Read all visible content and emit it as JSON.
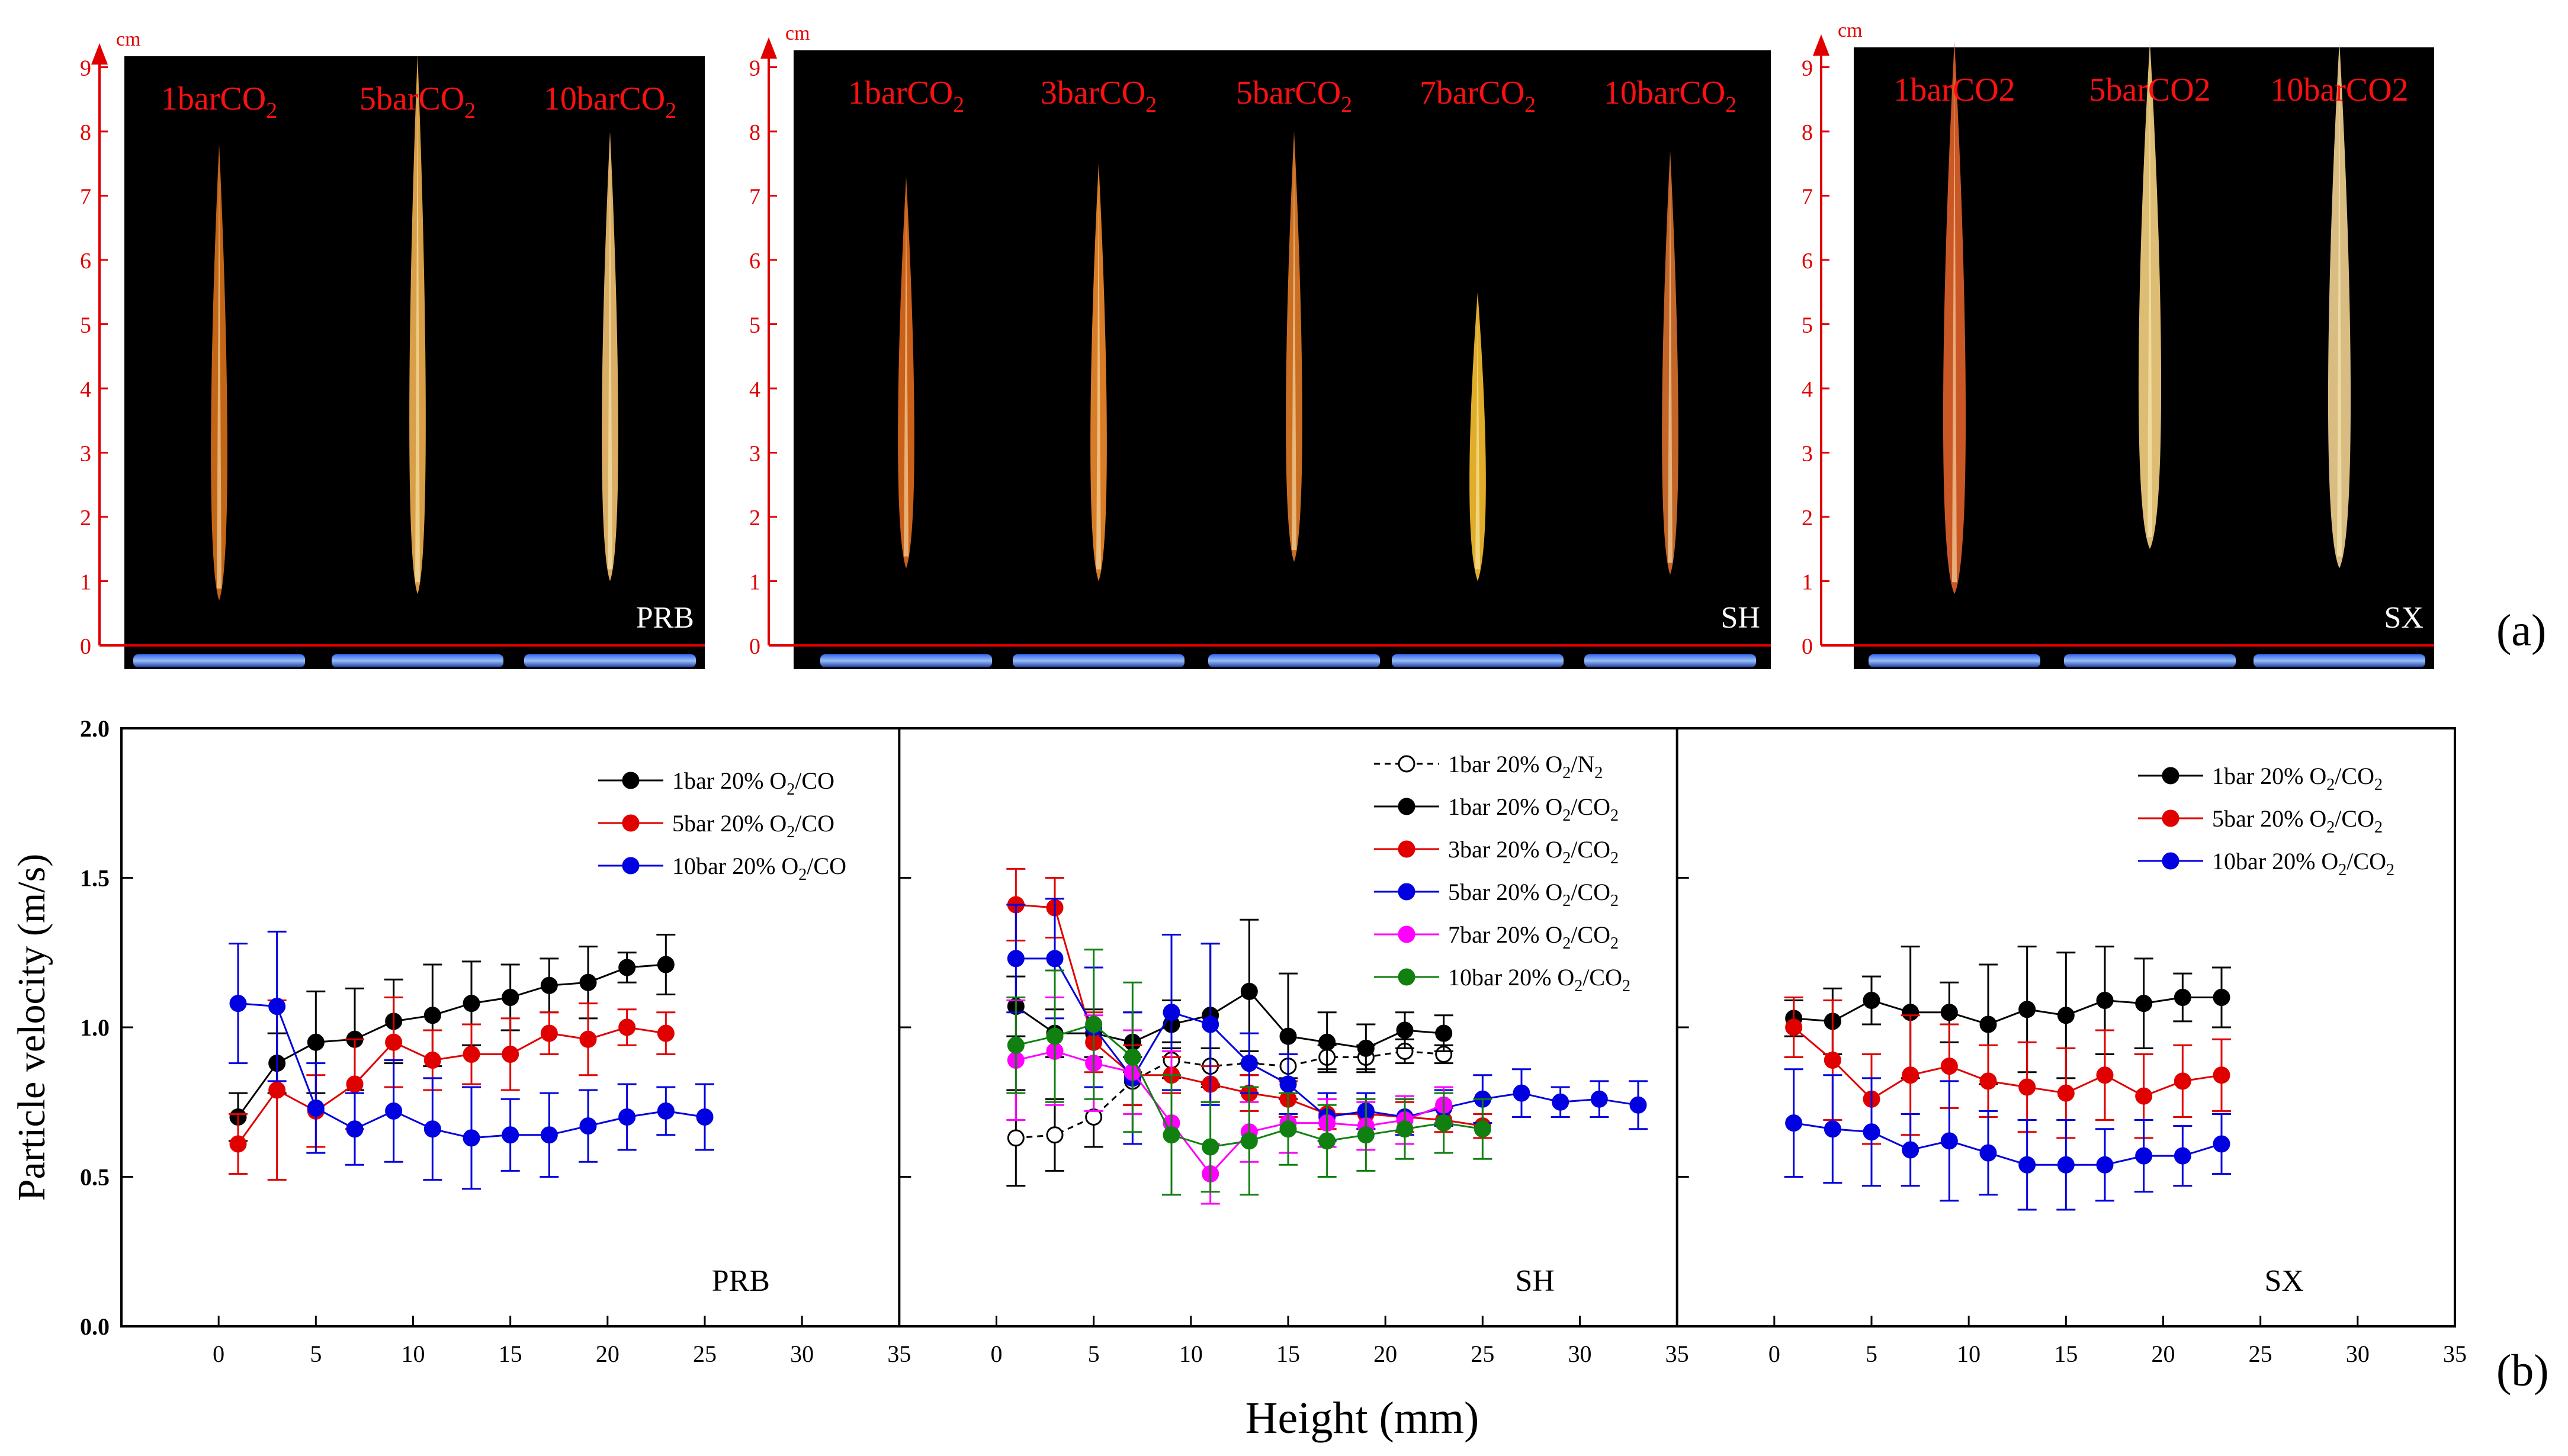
{
  "photos": {
    "panel_label": "(a)",
    "unit": "cm",
    "scale_ticks": [
      "0",
      "1",
      "2",
      "3",
      "4",
      "5",
      "6",
      "7",
      "8",
      "9"
    ],
    "groups": [
      {
        "name": "PRB",
        "labels": [
          {
            "main": "1barCO",
            "sub": "2"
          },
          {
            "main": "5barCO",
            "sub": "2"
          },
          {
            "main": "10barCO",
            "sub": "2"
          }
        ],
        "flame_heights_cm": [
          7.8,
          9.2,
          8.0
        ],
        "flame_bases_cm": [
          0.7,
          0.8,
          1.0
        ],
        "flame_colors": [
          "#d8701a",
          "#f0b050",
          "#f2c070"
        ]
      },
      {
        "name": "SH",
        "labels": [
          {
            "main": "1barCO",
            "sub": "2"
          },
          {
            "main": "3barCO",
            "sub": "2"
          },
          {
            "main": "5barCO",
            "sub": "2"
          },
          {
            "main": "7barCO",
            "sub": "2"
          },
          {
            "main": "10barCO",
            "sub": "2"
          }
        ],
        "flame_heights_cm": [
          7.3,
          7.5,
          8.0,
          5.5,
          7.7
        ],
        "flame_bases_cm": [
          1.2,
          1.0,
          1.3,
          1.0,
          1.1
        ],
        "flame_colors": [
          "#e06a1c",
          "#f08a2c",
          "#e07a28",
          "#f8c030",
          "#d8702c"
        ]
      },
      {
        "name": "SX",
        "labels": [
          {
            "main": "1barCO2",
            "sub": ""
          },
          {
            "main": "5barCO2",
            "sub": ""
          },
          {
            "main": "10barCO2",
            "sub": ""
          }
        ],
        "flame_heights_cm": [
          9.4,
          9.4,
          9.4
        ],
        "flame_bases_cm": [
          0.8,
          1.5,
          1.2
        ],
        "flame_colors": [
          "#e0602a",
          "#f5d080",
          "#f0d090"
        ]
      }
    ]
  },
  "chart": {
    "panel_label": "(b)",
    "ylabel": "Particle velocity (m/s)",
    "xlabel": "Height (mm)",
    "ytick_labels": [
      "0.0",
      "0.5",
      "1.0",
      "1.5",
      "2.0"
    ],
    "xtick_labels": [
      "0",
      "5",
      "10",
      "15",
      "20",
      "25",
      "30",
      "35"
    ]
  },
  "chart_data": [
    {
      "type": "scatter",
      "title": "PRB",
      "xlim": [
        -5,
        35
      ],
      "ylim": [
        0,
        2
      ],
      "series": [
        {
          "name": "1bar 20% O2/CO",
          "color": "#000000",
          "open": false,
          "x": [
            1,
            3,
            5,
            7,
            9,
            11,
            13,
            15,
            17,
            19,
            21,
            23
          ],
          "y": [
            0.7,
            0.88,
            0.95,
            0.96,
            1.02,
            1.04,
            1.08,
            1.1,
            1.14,
            1.15,
            1.2,
            1.21
          ],
          "err": [
            0.08,
            0.1,
            0.17,
            0.17,
            0.14,
            0.17,
            0.14,
            0.11,
            0.09,
            0.12,
            0.05,
            0.1
          ]
        },
        {
          "name": "5bar 20% O2/CO",
          "color": "#e00000",
          "open": false,
          "x": [
            1,
            3,
            5,
            7,
            9,
            11,
            13,
            15,
            17,
            19,
            21,
            23
          ],
          "y": [
            0.61,
            0.79,
            0.72,
            0.81,
            0.95,
            0.89,
            0.91,
            0.91,
            0.98,
            0.96,
            1.0,
            0.98
          ],
          "err": [
            0.1,
            0.3,
            0.12,
            0.15,
            0.15,
            0.1,
            0.1,
            0.12,
            0.07,
            0.12,
            0.06,
            0.07
          ]
        },
        {
          "name": "10bar 20% O2/CO",
          "color": "#0000e0",
          "open": false,
          "x": [
            1,
            3,
            5,
            7,
            9,
            11,
            13,
            15,
            17,
            19,
            21,
            23,
            25
          ],
          "y": [
            1.08,
            1.07,
            0.73,
            0.66,
            0.72,
            0.66,
            0.63,
            0.64,
            0.64,
            0.67,
            0.7,
            0.72,
            0.7
          ],
          "err": [
            0.2,
            0.25,
            0.15,
            0.12,
            0.17,
            0.17,
            0.17,
            0.12,
            0.14,
            0.12,
            0.11,
            0.08,
            0.11
          ]
        }
      ]
    },
    {
      "type": "scatter",
      "title": "SH",
      "xlim": [
        -5,
        35
      ],
      "ylim": [
        0,
        2
      ],
      "series": [
        {
          "name": "1bar 20% O2/N2",
          "color": "#000000",
          "open": true,
          "dashed": true,
          "x": [
            1,
            3,
            5,
            7,
            9,
            11,
            13,
            15,
            17,
            19,
            21,
            23
          ],
          "y": [
            0.63,
            0.64,
            0.7,
            0.82,
            0.89,
            0.87,
            0.88,
            0.87,
            0.9,
            0.9,
            0.92,
            0.91
          ],
          "err": [
            0.16,
            0.12,
            0.1,
            0.08,
            0.06,
            0.06,
            0.04,
            0.04,
            0.04,
            0.04,
            0.04,
            0.03
          ]
        },
        {
          "name": "1bar 20% O2/CO2",
          "color": "#000000",
          "open": false,
          "x": [
            1,
            3,
            5,
            7,
            9,
            11,
            13,
            15,
            17,
            19,
            21,
            23
          ],
          "y": [
            1.07,
            0.98,
            0.98,
            0.95,
            1.01,
            1.04,
            1.12,
            0.97,
            0.95,
            0.93,
            0.99,
            0.98
          ],
          "err": [
            0.1,
            0.08,
            0.08,
            0.1,
            0.08,
            0.24,
            0.24,
            0.21,
            0.1,
            0.08,
            0.06,
            0.06
          ]
        },
        {
          "name": "3bar 20% O2/CO2",
          "color": "#e00000",
          "open": false,
          "x": [
            1,
            3,
            5,
            7,
            9,
            11,
            13,
            15,
            17,
            19,
            21,
            23,
            25
          ],
          "y": [
            1.41,
            1.4,
            0.95,
            0.84,
            0.84,
            0.81,
            0.78,
            0.76,
            0.71,
            0.71,
            0.7,
            0.69,
            0.67
          ],
          "err": [
            0.12,
            0.1,
            0.1,
            0.1,
            0.06,
            0.06,
            0.06,
            0.06,
            0.05,
            0.05,
            0.05,
            0.04,
            0.04
          ]
        },
        {
          "name": "5bar 20% O2/CO2",
          "color": "#0000e0",
          "open": false,
          "x": [
            1,
            3,
            5,
            7,
            9,
            11,
            13,
            15,
            17,
            19,
            21,
            23,
            25,
            27,
            29,
            31,
            33
          ],
          "y": [
            1.23,
            1.23,
            1.0,
            0.83,
            1.05,
            1.01,
            0.88,
            0.81,
            0.7,
            0.72,
            0.7,
            0.73,
            0.76,
            0.78,
            0.75,
            0.76,
            0.74
          ],
          "err": [
            0.18,
            0.2,
            0.2,
            0.22,
            0.26,
            0.27,
            0.1,
            0.1,
            0.08,
            0.06,
            0.06,
            0.06,
            0.08,
            0.08,
            0.05,
            0.06,
            0.08
          ]
        },
        {
          "name": "7bar 20% O2/CO2",
          "color": "#ff00ff",
          "open": false,
          "x": [
            1,
            3,
            5,
            7,
            9,
            11,
            13,
            15,
            17,
            19,
            21,
            23
          ],
          "y": [
            0.89,
            0.92,
            0.88,
            0.85,
            0.68,
            0.51,
            0.65,
            0.68,
            0.68,
            0.67,
            0.69,
            0.74
          ],
          "err": [
            0.2,
            0.18,
            0.16,
            0.14,
            0.24,
            0.1,
            0.1,
            0.1,
            0.08,
            0.08,
            0.08,
            0.06
          ]
        },
        {
          "name": "10bar 20% O2/CO2",
          "color": "#108010",
          "open": false,
          "x": [
            1,
            3,
            5,
            7,
            9,
            11,
            13,
            15,
            17,
            19,
            21,
            23,
            25
          ],
          "y": [
            0.94,
            0.97,
            1.01,
            0.9,
            0.64,
            0.6,
            0.62,
            0.66,
            0.62,
            0.64,
            0.66,
            0.68,
            0.66
          ],
          "err": [
            0.16,
            0.22,
            0.25,
            0.25,
            0.2,
            0.15,
            0.18,
            0.12,
            0.12,
            0.12,
            0.1,
            0.1,
            0.1
          ]
        }
      ]
    },
    {
      "type": "scatter",
      "title": "SX",
      "xlim": [
        -5,
        35
      ],
      "ylim": [
        0,
        2
      ],
      "series": [
        {
          "name": "1bar 20% O2/CO2",
          "color": "#000000",
          "open": false,
          "x": [
            1,
            3,
            5,
            7,
            9,
            11,
            13,
            15,
            17,
            19,
            21,
            23
          ],
          "y": [
            1.03,
            1.02,
            1.09,
            1.05,
            1.05,
            1.01,
            1.06,
            1.04,
            1.09,
            1.08,
            1.1,
            1.1
          ],
          "err": [
            0.06,
            0.11,
            0.08,
            0.22,
            0.1,
            0.2,
            0.21,
            0.21,
            0.18,
            0.15,
            0.08,
            0.1
          ]
        },
        {
          "name": "5bar 20% O2/CO2",
          "color": "#e00000",
          "open": false,
          "x": [
            1,
            3,
            5,
            7,
            9,
            11,
            13,
            15,
            17,
            19,
            21,
            23
          ],
          "y": [
            1.0,
            0.89,
            0.76,
            0.84,
            0.87,
            0.82,
            0.8,
            0.78,
            0.84,
            0.77,
            0.82,
            0.84
          ],
          "err": [
            0.1,
            0.2,
            0.15,
            0.2,
            0.14,
            0.12,
            0.15,
            0.15,
            0.15,
            0.14,
            0.12,
            0.12
          ]
        },
        {
          "name": "10bar 20% O2/CO2",
          "color": "#0000e0",
          "open": false,
          "x": [
            1,
            3,
            5,
            7,
            9,
            11,
            13,
            15,
            17,
            19,
            21,
            23
          ],
          "y": [
            0.68,
            0.66,
            0.65,
            0.59,
            0.62,
            0.58,
            0.54,
            0.54,
            0.54,
            0.57,
            0.57,
            0.61
          ],
          "err": [
            0.18,
            0.18,
            0.18,
            0.12,
            0.2,
            0.14,
            0.15,
            0.15,
            0.12,
            0.12,
            0.1,
            0.1
          ]
        }
      ]
    }
  ]
}
